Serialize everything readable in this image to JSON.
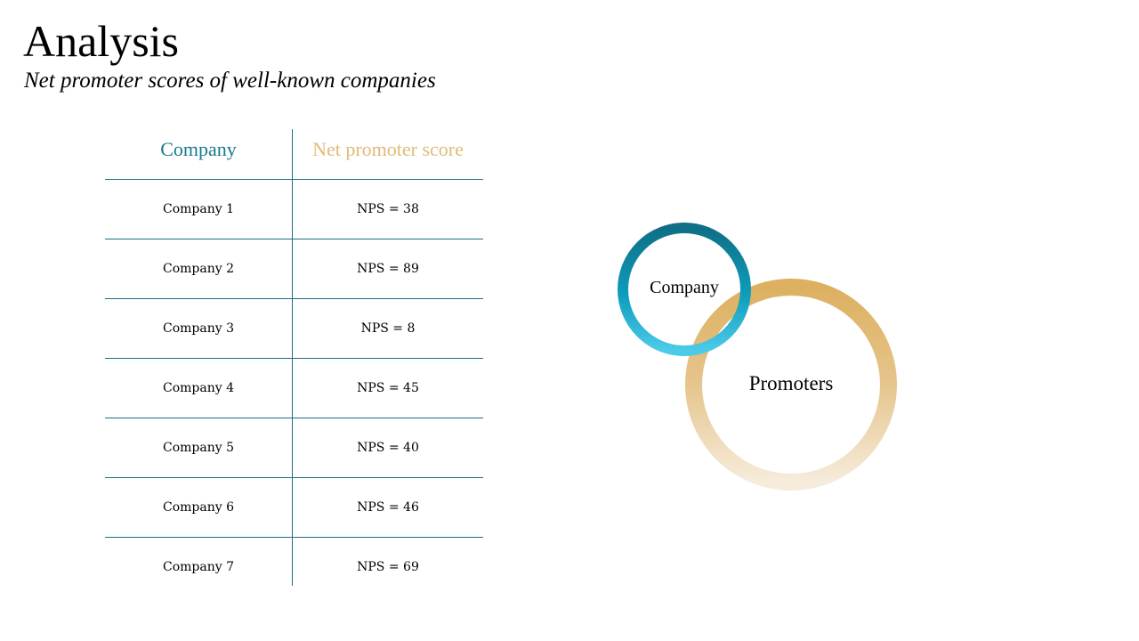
{
  "header": {
    "title": "Analysis",
    "subtitle": "Net promoter scores of well-known companies"
  },
  "table": {
    "columns": [
      "Company",
      "Net promoter score"
    ],
    "rows": [
      {
        "company": "Company 1",
        "nps": "NPS = 38"
      },
      {
        "company": "Company 2",
        "nps": "NPS = 89"
      },
      {
        "company": "Company 3",
        "nps": "NPS = 8"
      },
      {
        "company": "Company 4",
        "nps": "NPS = 45"
      },
      {
        "company": "Company 5",
        "nps": "NPS = 40"
      },
      {
        "company": "Company 6",
        "nps": "NPS = 46"
      },
      {
        "company": "Company 7",
        "nps": "NPS = 69"
      }
    ]
  },
  "venn": {
    "small_label": "Company",
    "large_label": "Promoters"
  },
  "colors": {
    "teal": "#167a8e",
    "gold": "#e0bb78",
    "rule": "#1f6f85"
  }
}
